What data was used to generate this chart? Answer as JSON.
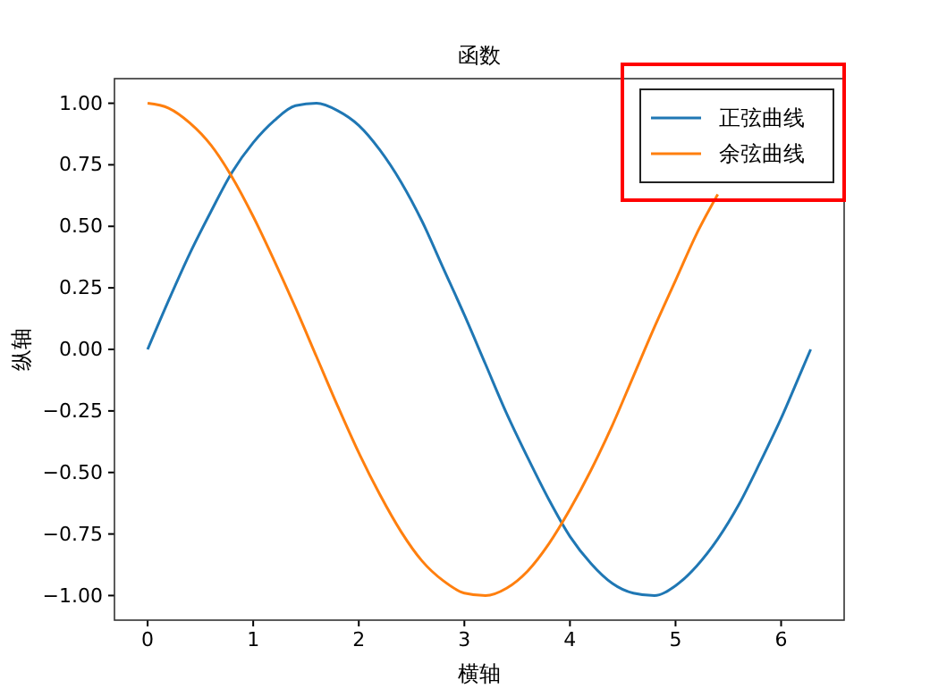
{
  "chart_data": {
    "type": "line",
    "title": "函数",
    "xlabel": "横轴",
    "ylabel": "纵轴",
    "x": [
      0,
      0.2,
      0.4,
      0.6,
      0.8,
      1.0,
      1.2,
      1.4,
      1.6,
      1.8,
      2.0,
      2.2,
      2.4,
      2.6,
      2.8,
      3.0,
      3.2,
      3.4,
      3.6,
      3.8,
      4.0,
      4.2,
      4.4,
      4.6,
      4.8,
      5.0,
      5.2,
      5.4,
      5.6,
      5.8,
      6.0,
      6.2,
      6.28
    ],
    "series": [
      {
        "name": "正弦曲线",
        "color": "#1f77b4",
        "values": [
          0,
          0.2,
          0.39,
          0.56,
          0.72,
          0.84,
          0.93,
          0.99,
          1.0,
          0.97,
          0.91,
          0.81,
          0.68,
          0.52,
          0.33,
          0.14,
          -0.06,
          -0.26,
          -0.44,
          -0.61,
          -0.76,
          -0.87,
          -0.95,
          -0.99,
          -1.0,
          -0.96,
          -0.88,
          -0.77,
          -0.63,
          -0.46,
          -0.28,
          -0.08,
          0
        ]
      },
      {
        "name": "余弦曲线",
        "color": "#ff7f0e",
        "values": [
          1,
          0.98,
          0.92,
          0.83,
          0.7,
          0.54,
          0.36,
          0.17,
          -0.03,
          -0.23,
          -0.42,
          -0.59,
          -0.74,
          -0.86,
          -0.94,
          -0.99,
          -1.0,
          -0.97,
          -0.9,
          -0.79,
          -0.65,
          -0.49,
          -0.31,
          -0.11,
          0.09,
          0.28,
          0.47,
          0.63,
          null,
          null,
          null,
          null,
          null
        ]
      }
    ],
    "xlim": [
      -0.314,
      6.597
    ],
    "xticks": [
      0,
      1,
      2,
      3,
      4,
      5,
      6
    ],
    "ylim": [
      -1.1,
      1.1
    ],
    "yticks": [
      {
        "value": 1,
        "label": "1.00"
      },
      {
        "value": 0.75,
        "label": "0.75"
      },
      {
        "value": 0.5,
        "label": "0.50"
      },
      {
        "value": 0.25,
        "label": "0.25"
      },
      {
        "value": 0,
        "label": "0.00"
      },
      {
        "value": -0.25,
        "label": "−0.25"
      },
      {
        "value": -0.5,
        "label": "−0.50"
      },
      {
        "value": -0.75,
        "label": "−0.75"
      },
      {
        "value": -1,
        "label": "−1.00"
      }
    ],
    "legend": "top right",
    "marker": "none",
    "line_style": "solid",
    "grid": false
  }
}
